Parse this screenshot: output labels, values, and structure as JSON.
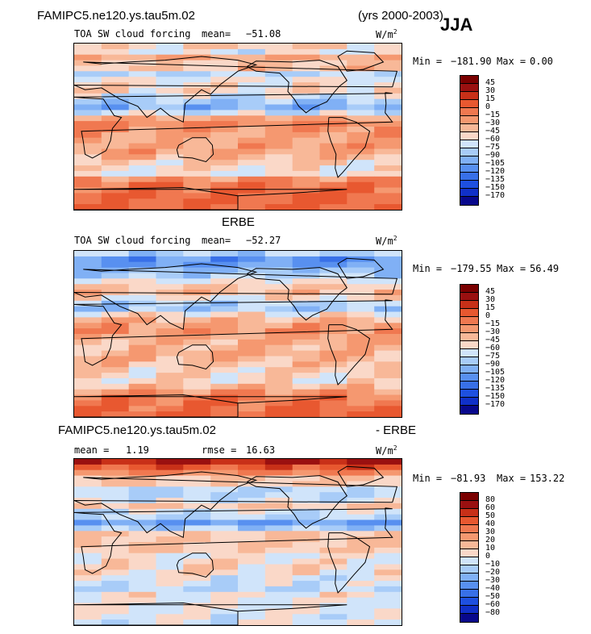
{
  "header": {
    "case_name": "FAMIPC5.ne120.ys.tau5m.02",
    "years": "(yrs 2000-2003)",
    "season": "JJA"
  },
  "colors": {
    "cf_scale": [
      "#08088c",
      "#1030c8",
      "#1e50e0",
      "#3870e8",
      "#5890f0",
      "#80b0f5",
      "#a8ccf8",
      "#d0e4fa",
      "#f4f4f4",
      "#fad8c8",
      "#f8b898",
      "#f59870",
      "#f07850",
      "#e85830",
      "#c83018",
      "#9a1010",
      "#7a0000"
    ],
    "diff_scale": [
      "#08088c",
      "#1030c8",
      "#1e50e0",
      "#3870e8",
      "#5890f0",
      "#80b0f5",
      "#a8ccf8",
      "#d0e4fa",
      "#f4f4f4",
      "#fad8c8",
      "#f8b898",
      "#f59870",
      "#f07850",
      "#e85830",
      "#c83018",
      "#9a1010",
      "#7a0000"
    ]
  },
  "chart_data": [
    {
      "type": "heatmap",
      "panel_title": "",
      "title": "TOA SW cloud forcing",
      "mean_label": "mean=",
      "mean_value": "−51.08",
      "units": "W/m",
      "units_sup": "2",
      "min_label": "Min =",
      "min_value": "−181.90",
      "max_label": "Max =",
      "max_value": "0.00",
      "levels": [
        "45",
        "30",
        "15",
        "0",
        "−15",
        "−30",
        "−45",
        "−60",
        "−75",
        "−90",
        "−105",
        "−120",
        "−135",
        "−150",
        "−170"
      ],
      "lat_profile": [
        -48,
        -62,
        -30,
        -45,
        -40,
        -75,
        -60,
        -55,
        -50,
        -70,
        -85,
        -95,
        -70,
        -30,
        -15,
        -20,
        -28,
        -30,
        -25,
        -28,
        -35,
        -48,
        -55,
        -60,
        -20,
        -8,
        -2,
        -1,
        -1,
        -1
      ]
    },
    {
      "type": "heatmap",
      "panel_title": "ERBE",
      "title": "TOA SW cloud forcing",
      "mean_label": "mean=",
      "mean_value": "−52.27",
      "units": "W/m",
      "units_sup": "2",
      "min_label": "Min =",
      "min_value": "−179.55",
      "max_label": "Max =",
      "max_value": "56.49",
      "levels": [
        "45",
        "30",
        "15",
        "0",
        "−15",
        "−30",
        "−45",
        "−60",
        "−75",
        "−90",
        "−105",
        "−120",
        "−135",
        "−150",
        "−170"
      ],
      "lat_profile": [
        -78,
        -110,
        -105,
        -90,
        -80,
        -60,
        -45,
        -40,
        -55,
        -78,
        -85,
        -55,
        -35,
        -25,
        -20,
        -30,
        -35,
        -38,
        -32,
        -35,
        -40,
        -48,
        -52,
        -55,
        -40,
        -20,
        -8,
        -4,
        -2,
        -1
      ]
    },
    {
      "type": "heatmap",
      "panel_title": "FAMIPC5.ne120.ys.tau5m.02",
      "panel_title_suffix": "- ERBE",
      "title": "",
      "mean_label": "mean =",
      "mean_value": "1.19",
      "rmse_label": "rmse =",
      "rmse_value": "16.63",
      "units": "W/m",
      "units_sup": "2",
      "min_label": "Min =",
      "min_value": "−81.93",
      "max_label": "Max =",
      "max_value": "153.22",
      "levels": [
        "80",
        "60",
        "50",
        "40",
        "30",
        "20",
        "10",
        "0",
        "−10",
        "−20",
        "−30",
        "−40",
        "−50",
        "−60",
        "−80"
      ],
      "lat_profile": [
        60,
        45,
        30,
        10,
        10,
        -10,
        -10,
        -5,
        12,
        -5,
        -8,
        -30,
        -15,
        8,
        10,
        12,
        8,
        0,
        4,
        6,
        5,
        -3,
        -5,
        -10,
        3,
        0,
        -2,
        -2,
        -3,
        -3
      ]
    }
  ]
}
